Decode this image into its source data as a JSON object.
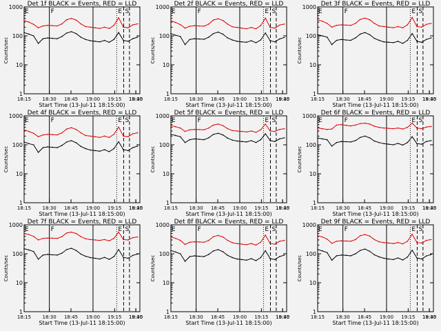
{
  "figure": {
    "background": "#f2f2f2",
    "event_color": "#000000",
    "lld_color": "#e00000",
    "x_axis_label": "Start Time (13-Jul-11 18:15:00)",
    "y_axis_label": "Counts/sec",
    "x_ticks": [
      "18:15",
      "18:30",
      "18:45",
      "19:00",
      "19:15",
      "19:30",
      "18:45"
    ],
    "y_ticks": [
      "1",
      "10",
      "100",
      "1000"
    ],
    "markers": {
      "E": "E",
      "F": "F",
      "S": "S"
    }
  },
  "chart_data": [
    {
      "type": "line",
      "title": "Det 1f BLACK = Events, RED = LLD",
      "xlabel": "Start Time (13-Jul-11 18:15:00)",
      "ylabel": "Counts/sec",
      "yscale": "log",
      "ylim": [
        1,
        1000
      ],
      "xtick_labels": [
        "18:15",
        "18:30",
        "18:45",
        "19:00",
        "19:15",
        "19:30",
        "18:45"
      ],
      "grid": false,
      "x_minutes": [
        0,
        5,
        10,
        15,
        20,
        25,
        30,
        35,
        40,
        45,
        50,
        55,
        60,
        65,
        70,
        75,
        80,
        85,
        90,
        95,
        100,
        105,
        110,
        115,
        120
      ],
      "series": [
        {
          "name": "BLACK = Events",
          "color": "#000000",
          "values": [
            130,
            115,
            100,
            55,
            80,
            85,
            82,
            80,
            95,
            125,
            140,
            120,
            90,
            75,
            68,
            65,
            62,
            70,
            60,
            75,
            130,
            70,
            65,
            80,
            90
          ]
        },
        {
          "name": "RED = LLD",
          "color": "#e00000",
          "values": [
            340,
            300,
            250,
            190,
            220,
            230,
            225,
            220,
            260,
            360,
            400,
            350,
            260,
            210,
            200,
            190,
            180,
            200,
            180,
            230,
            420,
            200,
            190,
            240,
            260
          ]
        }
      ]
    },
    {
      "type": "line",
      "title": "Det 2f BLACK = Events, RED = LLD",
      "xlabel": "Start Time (13-Jul-11 18:15:00)",
      "ylabel": "Counts/sec",
      "yscale": "log",
      "ylim": [
        1,
        1000
      ],
      "xtick_labels": [
        "18:15",
        "18:30",
        "18:45",
        "19:00",
        "19:15",
        "19:30",
        "18:45"
      ],
      "grid": false,
      "x_minutes": [
        0,
        5,
        10,
        15,
        20,
        25,
        30,
        35,
        40,
        45,
        50,
        55,
        60,
        65,
        70,
        75,
        80,
        85,
        90,
        95,
        100,
        105,
        110,
        115,
        120
      ],
      "series": [
        {
          "name": "BLACK = Events",
          "color": "#000000",
          "values": [
            120,
            105,
            95,
            50,
            75,
            80,
            78,
            76,
            90,
            120,
            135,
            115,
            85,
            72,
            65,
            62,
            60,
            68,
            58,
            72,
            125,
            68,
            62,
            78,
            88
          ]
        },
        {
          "name": "RED = LLD",
          "color": "#e00000",
          "values": [
            330,
            290,
            245,
            185,
            215,
            225,
            220,
            215,
            255,
            350,
            390,
            340,
            255,
            205,
            195,
            185,
            175,
            195,
            175,
            225,
            410,
            195,
            185,
            235,
            255
          ]
        }
      ]
    },
    {
      "type": "line",
      "title": "Det 3f BLACK = Events, RED = LLD",
      "xlabel": "Start Time (13-Jul-11 18:15:00)",
      "ylabel": "Counts/sec",
      "yscale": "log",
      "ylim": [
        1,
        1000
      ],
      "xtick_labels": [
        "18:15",
        "18:30",
        "18:45",
        "19:00",
        "19:15",
        "19:30",
        "18:45"
      ],
      "grid": false,
      "x_minutes": [
        0,
        5,
        10,
        15,
        20,
        25,
        30,
        35,
        40,
        45,
        50,
        55,
        60,
        65,
        70,
        75,
        80,
        85,
        90,
        95,
        100,
        105,
        110,
        115,
        120
      ],
      "series": [
        {
          "name": "BLACK = Events",
          "color": "#000000",
          "values": [
            110,
            100,
            90,
            50,
            70,
            75,
            72,
            70,
            85,
            115,
            130,
            110,
            82,
            70,
            62,
            60,
            58,
            65,
            55,
            70,
            120,
            65,
            60,
            75,
            85
          ]
        },
        {
          "name": "RED = LLD",
          "color": "#e00000",
          "values": [
            360,
            320,
            270,
            200,
            230,
            240,
            235,
            230,
            270,
            370,
            410,
            360,
            270,
            220,
            210,
            200,
            190,
            210,
            190,
            240,
            430,
            210,
            200,
            250,
            270
          ]
        }
      ]
    },
    {
      "type": "line",
      "title": "Det 4f BLACK = Events, RED = LLD",
      "xlabel": "Start Time (13-Jul-11 18:15:00)",
      "ylabel": "Counts/sec",
      "yscale": "log",
      "ylim": [
        1,
        1000
      ],
      "xtick_labels": [
        "18:15",
        "18:30",
        "18:45",
        "19:00",
        "19:15",
        "19:30",
        "18:45"
      ],
      "grid": false,
      "x_minutes": [
        0,
        5,
        10,
        15,
        20,
        25,
        30,
        35,
        40,
        45,
        50,
        55,
        60,
        65,
        70,
        75,
        80,
        85,
        90,
        95,
        100,
        105,
        110,
        115,
        120
      ],
      "series": [
        {
          "name": "BLACK = Events",
          "color": "#000000",
          "values": [
            125,
            110,
            100,
            55,
            80,
            85,
            82,
            80,
            95,
            125,
            140,
            118,
            88,
            74,
            66,
            63,
            60,
            68,
            58,
            74,
            128,
            68,
            63,
            80,
            90
          ]
        },
        {
          "name": "RED = LLD",
          "color": "#e00000",
          "values": [
            330,
            290,
            250,
            190,
            220,
            230,
            225,
            220,
            260,
            350,
            390,
            340,
            260,
            210,
            200,
            190,
            180,
            200,
            180,
            230,
            410,
            200,
            190,
            240,
            260
          ]
        }
      ]
    },
    {
      "type": "line",
      "title": "Det 5f BLACK = Events, RED = LLD",
      "xlabel": "Start Time (13-Jul-11 18:15:00)",
      "ylabel": "Counts/sec",
      "yscale": "log",
      "ylim": [
        1,
        1000
      ],
      "xtick_labels": [
        "18:15",
        "18:30",
        "18:45",
        "19:00",
        "19:15",
        "19:30",
        "18:45"
      ],
      "grid": false,
      "x_minutes": [
        0,
        5,
        10,
        15,
        20,
        25,
        30,
        35,
        40,
        45,
        50,
        55,
        60,
        65,
        70,
        75,
        80,
        85,
        90,
        95,
        100,
        105,
        110,
        115,
        120
      ],
      "series": [
        {
          "name": "BLACK = Events",
          "color": "#000000",
          "values": [
            230,
            210,
            190,
            120,
            150,
            160,
            155,
            150,
            175,
            230,
            250,
            220,
            170,
            145,
            135,
            130,
            125,
            140,
            120,
            150,
            240,
            140,
            130,
            160,
            175
          ]
        },
        {
          "name": "RED = LLD",
          "color": "#e00000",
          "values": [
            460,
            420,
            380,
            290,
            330,
            340,
            335,
            330,
            380,
            480,
            520,
            460,
            360,
            310,
            300,
            290,
            280,
            300,
            270,
            330,
            520,
            300,
            290,
            340,
            360
          ]
        }
      ]
    },
    {
      "type": "line",
      "title": "Det 6f BLACK = Events, RED = LLD",
      "xlabel": "Start Time (13-Jul-11 18:15:00)",
      "ylabel": "Counts/sec",
      "yscale": "log",
      "ylim": [
        1,
        1000
      ],
      "xtick_labels": [
        "18:15",
        "18:30",
        "18:45",
        "19:00",
        "19:15",
        "19:30",
        "18:45"
      ],
      "grid": false,
      "x_minutes": [
        0,
        5,
        10,
        15,
        20,
        25,
        30,
        35,
        40,
        45,
        50,
        55,
        60,
        65,
        70,
        75,
        80,
        85,
        90,
        95,
        100,
        105,
        110,
        115,
        120
      ],
      "series": [
        {
          "name": "BLACK = Events",
          "color": "#000000",
          "values": [
            170,
            160,
            150,
            90,
            120,
            130,
            128,
            125,
            140,
            180,
            200,
            175,
            135,
            120,
            110,
            105,
            100,
            112,
            98,
            120,
            190,
            110,
            105,
            130,
            140
          ]
        },
        {
          "name": "RED = LLD",
          "color": "#e00000",
          "values": [
            380,
            360,
            340,
            350,
            480,
            500,
            470,
            450,
            480,
            540,
            560,
            520,
            440,
            400,
            380,
            370,
            360,
            380,
            350,
            400,
            560,
            380,
            360,
            410,
            430
          ]
        }
      ]
    },
    {
      "type": "line",
      "title": "Det 7f BLACK = Events, RED = LLD",
      "xlabel": "Start Time (13-Jul-11 18:15:00)",
      "ylabel": "Counts/sec",
      "yscale": "log",
      "ylim": [
        1,
        1000
      ],
      "xtick_labels": [
        "18:15",
        "18:30",
        "18:45",
        "19:00",
        "19:15",
        "19:30",
        "18:45"
      ],
      "grid": false,
      "x_minutes": [
        0,
        5,
        10,
        15,
        20,
        25,
        30,
        35,
        40,
        45,
        50,
        55,
        60,
        65,
        70,
        75,
        80,
        85,
        90,
        95,
        100,
        105,
        110,
        115,
        120
      ],
      "series": [
        {
          "name": "BLACK = Events",
          "color": "#000000",
          "values": [
            150,
            135,
            120,
            65,
            90,
            95,
            92,
            90,
            105,
            140,
            155,
            130,
            98,
            82,
            74,
            70,
            66,
            75,
            64,
            80,
            140,
            75,
            70,
            88,
            98
          ]
        },
        {
          "name": "RED = LLD",
          "color": "#e00000",
          "values": [
            500,
            460,
            400,
            300,
            340,
            350,
            345,
            340,
            390,
            520,
            560,
            500,
            390,
            330,
            310,
            300,
            290,
            310,
            280,
            340,
            560,
            310,
            300,
            360,
            380
          ]
        }
      ]
    },
    {
      "type": "line",
      "title": "Det 8f BLACK = Events, RED = LLD",
      "xlabel": "Start Time (13-Jul-11 18:15:00)",
      "ylabel": "Counts/sec",
      "yscale": "log",
      "ylim": [
        1,
        1000
      ],
      "xtick_labels": [
        "18:15",
        "18:30",
        "18:45",
        "19:00",
        "19:15",
        "19:30",
        "18:45"
      ],
      "grid": false,
      "x_minutes": [
        0,
        5,
        10,
        15,
        20,
        25,
        30,
        35,
        40,
        45,
        50,
        55,
        60,
        65,
        70,
        75,
        80,
        85,
        90,
        95,
        100,
        105,
        110,
        115,
        120
      ],
      "series": [
        {
          "name": "BLACK = Events",
          "color": "#000000",
          "values": [
            130,
            115,
            100,
            55,
            80,
            85,
            82,
            80,
            95,
            125,
            140,
            118,
            88,
            74,
            66,
            63,
            60,
            68,
            58,
            74,
            128,
            68,
            63,
            80,
            90
          ]
        },
        {
          "name": "RED = LLD",
          "color": "#e00000",
          "values": [
            380,
            340,
            290,
            210,
            250,
            260,
            255,
            250,
            290,
            390,
            430,
            380,
            290,
            240,
            225,
            215,
            205,
            225,
            200,
            250,
            440,
            225,
            215,
            270,
            290
          ]
        }
      ]
    },
    {
      "type": "line",
      "title": "Det 9f BLACK = Events, RED = LLD",
      "xlabel": "Start Time (13-Jul-11 18:15:00)",
      "ylabel": "Counts/sec",
      "yscale": "log",
      "ylim": [
        1,
        1000
      ],
      "xtick_labels": [
        "18:15",
        "18:30",
        "18:45",
        "19:00",
        "19:15",
        "19:30",
        "18:45"
      ],
      "grid": false,
      "x_minutes": [
        0,
        5,
        10,
        15,
        20,
        25,
        30,
        35,
        40,
        45,
        50,
        55,
        60,
        65,
        70,
        75,
        80,
        85,
        90,
        95,
        100,
        105,
        110,
        115,
        120
      ],
      "series": [
        {
          "name": "BLACK = Events",
          "color": "#000000",
          "values": [
            140,
            125,
            110,
            60,
            85,
            90,
            88,
            85,
            100,
            130,
            145,
            122,
            92,
            78,
            70,
            66,
            63,
            72,
            61,
            77,
            132,
            72,
            66,
            84,
            94
          ]
        },
        {
          "name": "RED = LLD",
          "color": "#e00000",
          "values": [
            420,
            380,
            320,
            230,
            270,
            280,
            275,
            270,
            310,
            420,
            460,
            410,
            310,
            260,
            245,
            235,
            225,
            245,
            220,
            270,
            470,
            245,
            235,
            290,
            310
          ]
        }
      ]
    }
  ]
}
